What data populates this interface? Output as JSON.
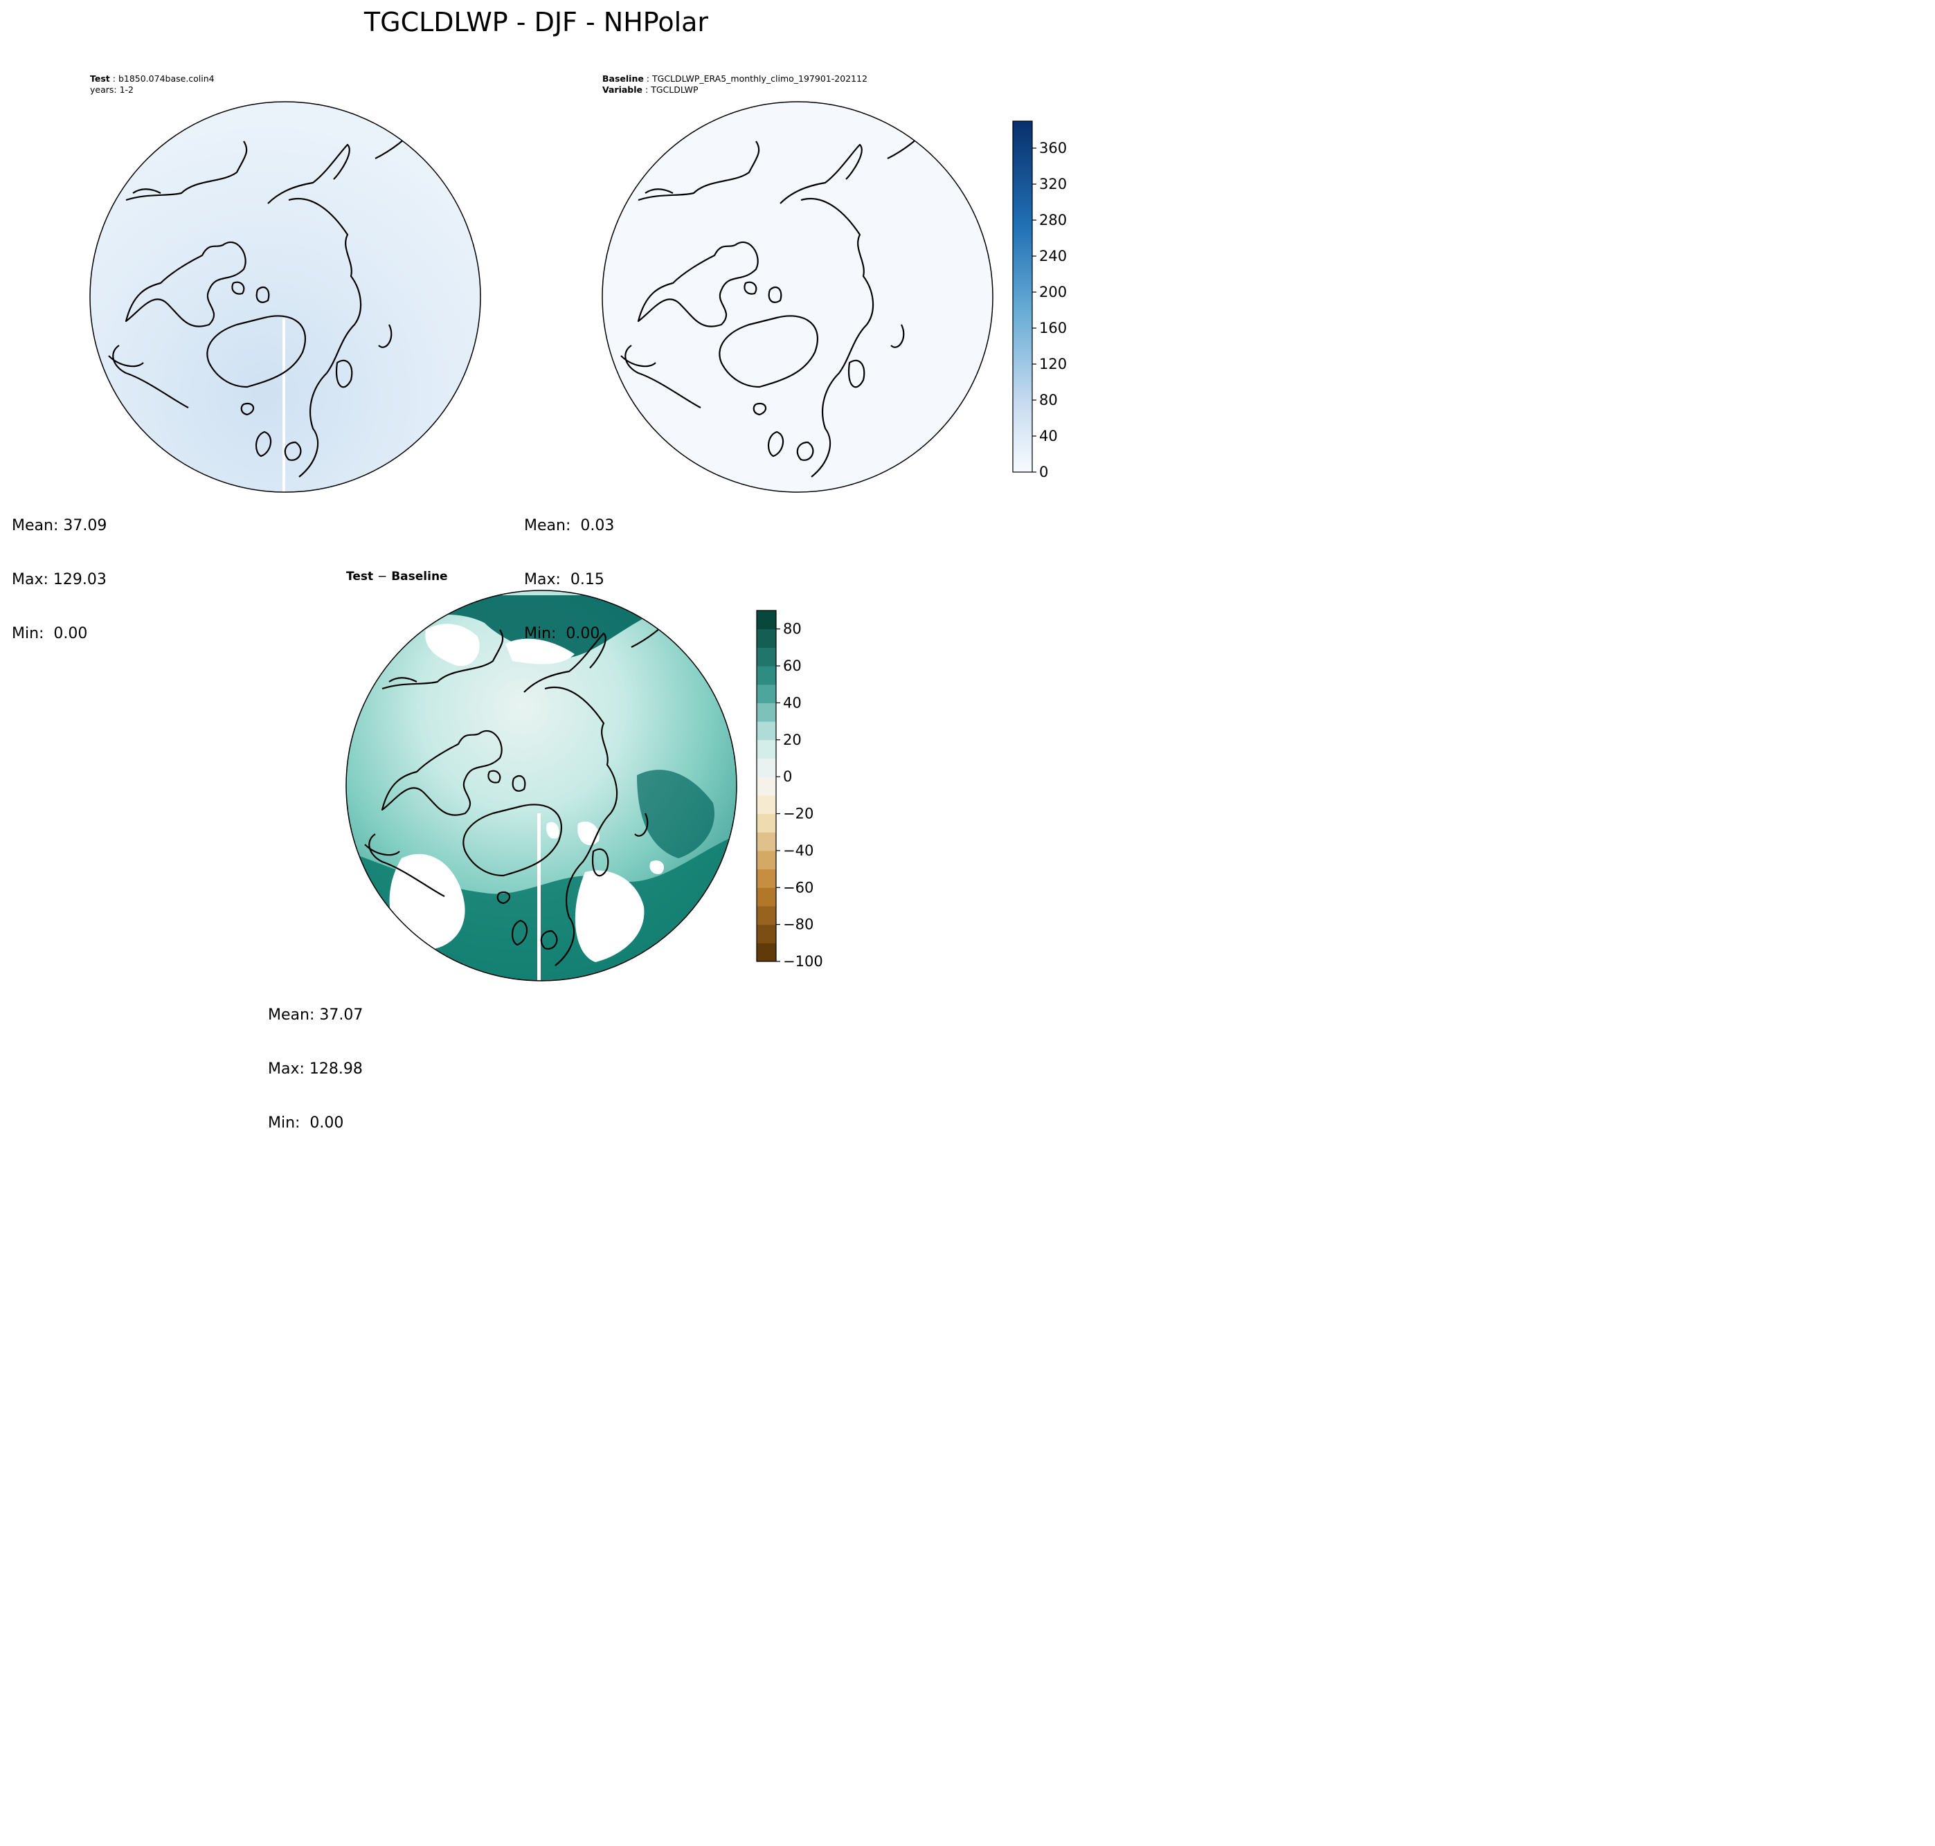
{
  "suptitle": "TGCLDLWP - DJF - NHPolar",
  "panels": {
    "test": {
      "header_label": "Test",
      "header_value": "b1850.074base.colin4",
      "subheader": "years: 1-2",
      "stats": {
        "mean": "Mean: 37.09",
        "max": "Max: 129.03",
        "min": "Min:  0.00"
      }
    },
    "baseline": {
      "header_label": "Baseline",
      "header_value": "TGCLDLWP_ERA5_monthly_climo_197901-202112",
      "sub_label": "Variable",
      "sub_value": "TGCLDLWP",
      "stats": {
        "mean": "Mean:  0.03",
        "max": "Max:  0.15",
        "min": "Min:  0.00"
      }
    },
    "difference": {
      "title_left": "Test",
      "title_op": "−",
      "title_right": "Baseline",
      "stats": {
        "mean": "Mean: 37.07",
        "max": "Max: 128.98",
        "min": "Min:  0.00"
      }
    }
  },
  "colorbars": {
    "blues": {
      "ticks": [
        "0",
        "40",
        "80",
        "120",
        "160",
        "200",
        "240",
        "280",
        "320",
        "360"
      ],
      "tick_values": [
        0,
        40,
        80,
        120,
        160,
        200,
        240,
        280,
        320,
        360
      ],
      "range": [
        0,
        390
      ],
      "colors": [
        "#f7fbff",
        "#08306b"
      ]
    },
    "diverging": {
      "ticks": [
        "80",
        "60",
        "40",
        "20",
        "0",
        "−20",
        "−40",
        "−60",
        "−80",
        "−100"
      ],
      "tick_values": [
        80,
        60,
        40,
        20,
        0,
        -20,
        -40,
        -60,
        -80,
        -100
      ],
      "range": [
        -100,
        90
      ],
      "colors": [
        "#543005",
        "#f5f5f5",
        "#003c30"
      ]
    }
  }
}
